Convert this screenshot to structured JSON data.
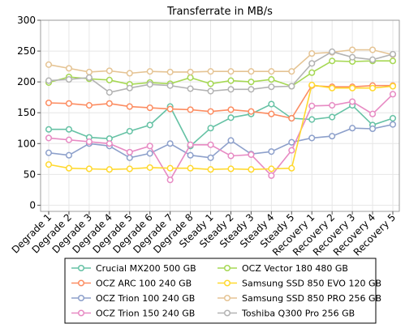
{
  "chart_data": {
    "type": "line",
    "title": "Transferrate in MB/s",
    "xlabel": "",
    "ylabel": "",
    "ylim": [
      -10,
      300
    ],
    "yticks": [
      0,
      50,
      100,
      150,
      200,
      250,
      300
    ],
    "grid": true,
    "legend_position": "bottom",
    "categories": [
      "Degrade 1",
      "Degrade 2",
      "Degrade 3",
      "Degrade 4",
      "Degrade 5",
      "Degrade 6",
      "Degrade 7",
      "Degrade 8",
      "Steady 1",
      "Steady 2",
      "Steady 3",
      "Steady 4",
      "Steady 5",
      "Recovery 1",
      "Recovery 2",
      "Recovery 3",
      "Recovery 4",
      "Recovery 5"
    ],
    "series": [
      {
        "name": "Crucial MX200 500 GB",
        "color": "#66c2a5",
        "values": [
          123,
          123,
          110,
          108,
          120,
          130,
          160,
          96,
          125,
          142,
          148,
          164,
          141,
          139,
          143,
          162,
          130,
          141
        ]
      },
      {
        "name": "OCZ ARC 100 240 GB",
        "color": "#fc8d62",
        "values": [
          166,
          165,
          162,
          165,
          160,
          158,
          156,
          155,
          152,
          155,
          152,
          148,
          141,
          194,
          192,
          192,
          194,
          194
        ]
      },
      {
        "name": "OCZ Trion 100 240 GB",
        "color": "#8da0cb",
        "values": [
          85,
          81,
          100,
          96,
          77,
          84,
          100,
          81,
          77,
          105,
          83,
          87,
          102,
          109,
          112,
          125,
          124,
          131
        ]
      },
      {
        "name": "OCZ Trion 150 240 GB",
        "color": "#e78ac3",
        "values": [
          109,
          106,
          103,
          100,
          86,
          96,
          41,
          98,
          98,
          80,
          82,
          48,
          89,
          161,
          162,
          168,
          148,
          180
        ]
      },
      {
        "name": "OCZ Vector 180 480 GB",
        "color": "#a6d854",
        "values": [
          199,
          208,
          205,
          203,
          196,
          199,
          197,
          207,
          197,
          202,
          200,
          204,
          193,
          215,
          234,
          233,
          234,
          234
        ]
      },
      {
        "name": "Samsung SSD 850 EVO 120 GB",
        "color": "#ffd92f",
        "values": [
          66,
          60,
          59,
          58,
          59,
          61,
          60,
          60,
          58,
          59,
          58,
          59,
          60,
          195,
          190,
          190,
          190,
          193
        ]
      },
      {
        "name": "Samsung SSD 850 PRO 256 GB",
        "color": "#e5c494",
        "values": [
          228,
          222,
          216,
          218,
          214,
          217,
          216,
          216,
          217,
          217,
          217,
          217,
          217,
          246,
          248,
          252,
          252,
          244
        ]
      },
      {
        "name": "Toshiba Q300 Pro 256 GB",
        "color": "#b3b3b3",
        "values": [
          202,
          204,
          207,
          183,
          190,
          196,
          194,
          189,
          185,
          188,
          188,
          192,
          193,
          230,
          249,
          240,
          236,
          245
        ]
      }
    ]
  }
}
